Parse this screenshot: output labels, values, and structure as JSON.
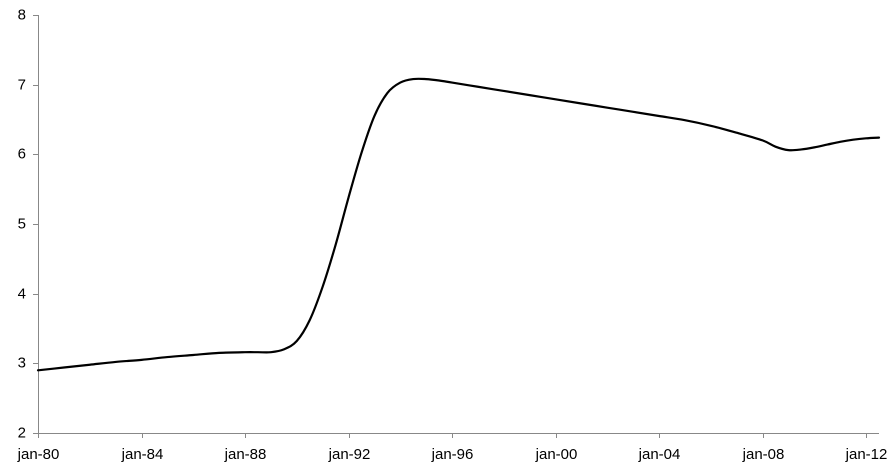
{
  "chart_data": {
    "type": "line",
    "title": "",
    "xlabel": "",
    "ylabel": "",
    "ylim": [
      2,
      8
    ],
    "yticks": [
      "2",
      "3",
      "4",
      "5",
      "6",
      "7",
      "8"
    ],
    "xlim": [
      "1980-01",
      "2012-07"
    ],
    "xtick_dates": [
      "1980-01",
      "1984-01",
      "1988-01",
      "1992-01",
      "1996-01",
      "2000-01",
      "2004-01",
      "2008-01",
      "2012-01"
    ],
    "xticks": [
      "jan-80",
      "jan-84",
      "jan-88",
      "jan-92",
      "jan-96",
      "jan-00",
      "jan-04",
      "jan-08",
      "jan-12"
    ],
    "grid": false,
    "legend": "none",
    "line_color": "#000000",
    "series": [
      {
        "x": [
          "1980-01",
          "1981-01",
          "1982-01",
          "1983-01",
          "1984-01",
          "1985-01",
          "1986-01",
          "1987-01",
          "1988-01",
          "1988-07",
          "1989-01",
          "1989-07",
          "1990-01",
          "1990-07",
          "1991-01",
          "1991-07",
          "1992-01",
          "1992-07",
          "1993-01",
          "1993-07",
          "1994-01",
          "1994-07",
          "1995-01",
          "1995-07",
          "1996-01",
          "1997-01",
          "1998-01",
          "1999-01",
          "2000-01",
          "2001-01",
          "2002-01",
          "2003-01",
          "2004-01",
          "2005-01",
          "2006-01",
          "2007-01",
          "2008-01",
          "2008-07",
          "2009-01",
          "2009-07",
          "2010-01",
          "2010-07",
          "2011-01",
          "2011-07",
          "2012-01",
          "2012-07"
        ],
        "values": [
          2.9,
          2.94,
          2.98,
          3.02,
          3.05,
          3.09,
          3.12,
          3.15,
          3.16,
          3.16,
          3.16,
          3.2,
          3.32,
          3.62,
          4.1,
          4.7,
          5.38,
          6.02,
          6.55,
          6.88,
          7.03,
          7.08,
          7.08,
          7.06,
          7.03,
          6.97,
          6.91,
          6.85,
          6.79,
          6.73,
          6.67,
          6.61,
          6.55,
          6.49,
          6.41,
          6.31,
          6.2,
          6.11,
          6.06,
          6.07,
          6.1,
          6.14,
          6.18,
          6.21,
          6.23,
          6.24
        ]
      }
    ]
  }
}
